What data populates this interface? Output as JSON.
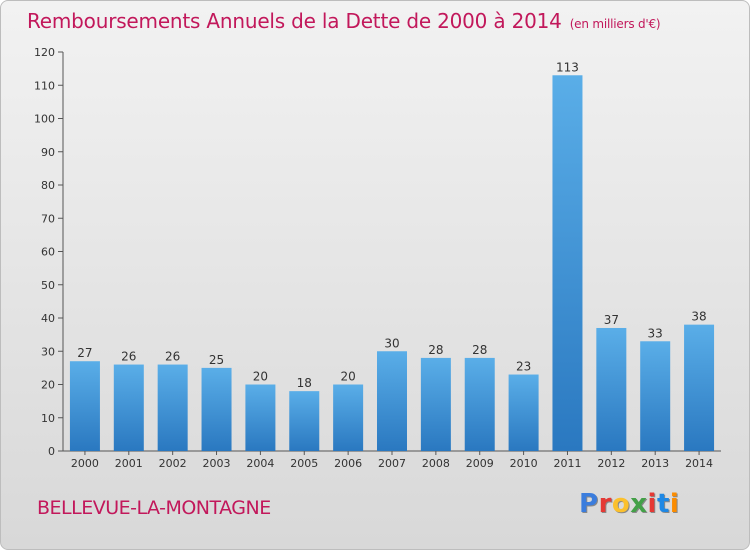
{
  "title": "Remboursements Annuels de la Dette de 2000 à 2014",
  "unit": "(en milliers d'€)",
  "commune": "BELLEVUE-LA-MONTAGNE",
  "logo": [
    "P",
    "r",
    "o",
    "x",
    "i",
    "t",
    "i"
  ],
  "logo_colors": [
    "#3b7ddd",
    "#e53935",
    "#fbc02d",
    "#43a047",
    "#e53935",
    "#1e88e5",
    "#fb8c00"
  ],
  "colors": {
    "title": "#c2185b",
    "bar_top": "#5aaee8",
    "bar_bottom": "#2a78c0"
  },
  "chart_data": {
    "type": "bar",
    "title": "Remboursements Annuels de la Dette de 2000 à 2014",
    "categories": [
      "2000",
      "2001",
      "2002",
      "2003",
      "2004",
      "2005",
      "2006",
      "2007",
      "2008",
      "2009",
      "2010",
      "2011",
      "2012",
      "2013",
      "2014"
    ],
    "values": [
      27,
      26,
      26,
      25,
      20,
      18,
      20,
      30,
      28,
      28,
      23,
      113,
      37,
      33,
      38
    ],
    "ylim": [
      0,
      120
    ],
    "yticks": [
      0,
      10,
      20,
      30,
      40,
      50,
      60,
      70,
      80,
      90,
      100,
      110,
      120
    ],
    "xlabel": "",
    "ylabel": "",
    "grid": false
  }
}
